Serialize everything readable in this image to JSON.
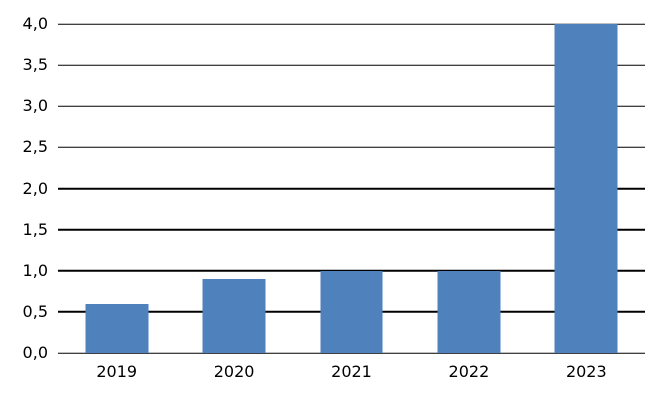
{
  "chart_data": {
    "type": "bar",
    "title": "",
    "categories": [
      "2019",
      "2020",
      "2021",
      "2022",
      "2023"
    ],
    "values": [
      0.6,
      0.9,
      1.0,
      1.0,
      4.0
    ],
    "y_axis": {
      "min": 0,
      "max": 4,
      "step": 0.5,
      "tick_labels": [
        "0,0",
        "0,5",
        "1,0",
        "1,5",
        "2,0",
        "2,5",
        "3,0",
        "3,5",
        "4,0"
      ]
    },
    "xlabel": "",
    "ylabel": "",
    "grid": true,
    "legend": "none",
    "colors": {
      "bar": "#4F81BD",
      "gridline": "#000000",
      "text": "#000000",
      "background": "#FFFFFF"
    }
  }
}
